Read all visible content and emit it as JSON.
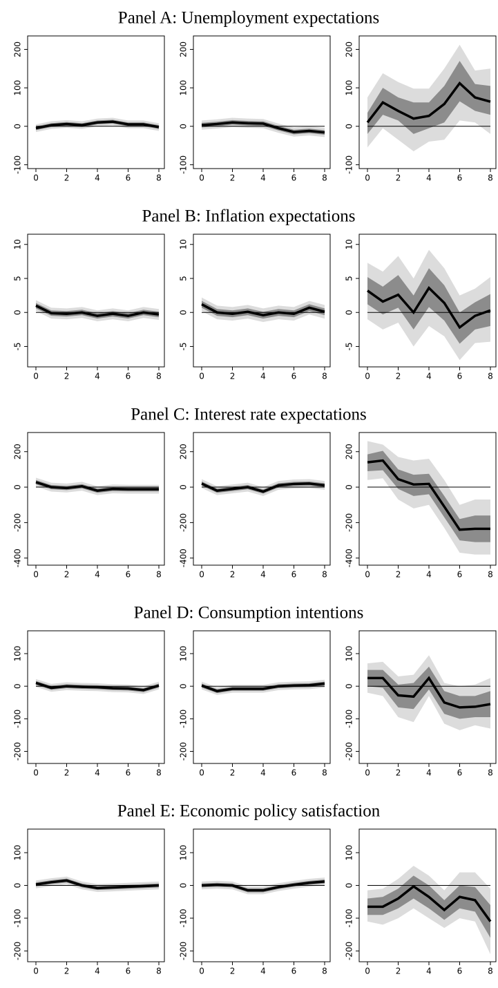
{
  "chart_data": [
    {
      "type": "line",
      "title": "Panel A: Unemployment expectations",
      "x": [
        0,
        1,
        2,
        3,
        4,
        5,
        6,
        7,
        8
      ],
      "xlim": [
        -0.54,
        8.36
      ],
      "xticks": [
        0,
        2,
        4,
        6,
        8
      ],
      "ylim": [
        -110,
        235
      ],
      "yticks": [
        -100,
        0,
        100,
        200
      ],
      "reference_line": 0,
      "line_color": "#000000",
      "inner_band_color": "#8c8c8c",
      "outer_band_color": "#dcdcdc",
      "subplots": [
        {
          "values": [
            -5,
            3,
            6,
            3,
            10,
            12,
            5,
            5,
            -2
          ],
          "inner_lower": [
            -10,
            -2,
            1,
            -2,
            5,
            7,
            0,
            0,
            -7
          ],
          "inner_upper": [
            0,
            8,
            11,
            8,
            15,
            17,
            10,
            10,
            3
          ],
          "outer_lower": [
            -15,
            -7,
            -4,
            -7,
            0,
            2,
            -5,
            -5,
            -12
          ],
          "outer_upper": [
            5,
            13,
            16,
            13,
            20,
            22,
            15,
            15,
            8
          ]
        },
        {
          "values": [
            3,
            6,
            10,
            8,
            7,
            -5,
            -15,
            -12,
            -16
          ],
          "inner_lower": [
            -3,
            0,
            4,
            2,
            1,
            -11,
            -21,
            -18,
            -22
          ],
          "inner_upper": [
            9,
            12,
            16,
            14,
            13,
            1,
            -9,
            -6,
            -10
          ],
          "outer_lower": [
            -9,
            -6,
            -2,
            -4,
            -5,
            -17,
            -27,
            -24,
            -28
          ],
          "outer_upper": [
            15,
            18,
            22,
            20,
            19,
            7,
            -3,
            0,
            -4
          ]
        },
        {
          "values": [
            10,
            62,
            40,
            20,
            27,
            58,
            112,
            75,
            64
          ],
          "inner_lower": [
            -20,
            30,
            15,
            -20,
            -5,
            10,
            65,
            40,
            30
          ],
          "inner_upper": [
            35,
            100,
            75,
            62,
            62,
            105,
            170,
            110,
            105
          ],
          "outer_lower": [
            -55,
            -5,
            -35,
            -65,
            -40,
            -35,
            15,
            10,
            -20
          ],
          "outer_upper": [
            75,
            138,
            115,
            98,
            98,
            150,
            212,
            145,
            150
          ]
        }
      ]
    },
    {
      "type": "line",
      "title": "Panel B: Inflation expectations",
      "x": [
        0,
        1,
        2,
        3,
        4,
        5,
        6,
        7,
        8
      ],
      "xlim": [
        -0.54,
        8.36
      ],
      "xticks": [
        0,
        2,
        4,
        6,
        8
      ],
      "ylim": [
        -8,
        11.5
      ],
      "yticks": [
        -5,
        0,
        5,
        10
      ],
      "reference_line": 0,
      "line_color": "#000000",
      "inner_band_color": "#8c8c8c",
      "outer_band_color": "#dcdcdc",
      "subplots": [
        {
          "values": [
            1,
            -0.1,
            -0.2,
            0,
            -0.5,
            -0.2,
            -0.5,
            0,
            -0.3
          ],
          "inner_lower": [
            0.6,
            -0.5,
            -0.6,
            -0.4,
            -0.9,
            -0.6,
            -0.9,
            -0.4,
            -0.7
          ],
          "inner_upper": [
            1.4,
            0.3,
            0.2,
            0.4,
            -0.1,
            0.2,
            -0.1,
            0.4,
            0.1
          ],
          "outer_lower": [
            0.2,
            -0.9,
            -1,
            -0.8,
            -1.3,
            -1,
            -1.3,
            -0.8,
            -1.1
          ],
          "outer_upper": [
            1.8,
            0.7,
            0.6,
            0.8,
            0.3,
            0.6,
            0.3,
            0.8,
            0.5
          ]
        },
        {
          "values": [
            1.2,
            0,
            -0.2,
            0.1,
            -0.4,
            0,
            -0.2,
            0.7,
            0.1
          ],
          "inner_lower": [
            0.7,
            -0.5,
            -0.7,
            -0.4,
            -0.9,
            -0.5,
            -0.7,
            0.2,
            -0.4
          ],
          "inner_upper": [
            1.7,
            0.5,
            0.3,
            0.6,
            0.1,
            0.5,
            0.3,
            1.2,
            0.6
          ],
          "outer_lower": [
            0.2,
            -1,
            -1.2,
            -0.9,
            -1.4,
            -1,
            -1.2,
            -0.3,
            -0.9
          ],
          "outer_upper": [
            2.2,
            1,
            0.8,
            1.1,
            0.6,
            1,
            0.8,
            1.7,
            1.1
          ]
        },
        {
          "values": [
            3.2,
            1.6,
            2.6,
            0,
            3.6,
            1.4,
            -2.2,
            -0.5,
            0.3
          ],
          "inner_lower": [
            1.2,
            -0.3,
            0.7,
            -2.5,
            0.8,
            -1.2,
            -4.6,
            -2.5,
            -2
          ],
          "inner_upper": [
            5.2,
            3.8,
            5.5,
            2.5,
            6.5,
            4,
            0,
            1.5,
            2.7
          ],
          "outer_lower": [
            -1,
            -2.5,
            -1.5,
            -5,
            -2,
            -3.5,
            -7,
            -4.5,
            -4.3
          ],
          "outer_upper": [
            7.3,
            6,
            8.3,
            5,
            9.2,
            6.5,
            2.5,
            3.5,
            5.2
          ]
        }
      ]
    },
    {
      "type": "line",
      "title": "Panel C: Interest rate expectations",
      "x": [
        0,
        1,
        2,
        3,
        4,
        5,
        6,
        7,
        8
      ],
      "xlim": [
        -0.54,
        8.36
      ],
      "xticks": [
        0,
        2,
        4,
        6,
        8
      ],
      "ylim": [
        -440,
        308
      ],
      "yticks": [
        -400,
        -200,
        0,
        200
      ],
      "reference_line": 0,
      "line_color": "#000000",
      "inner_band_color": "#8c8c8c",
      "outer_band_color": "#dcdcdc",
      "subplots": [
        {
          "values": [
            28,
            0,
            -5,
            5,
            -20,
            -10,
            -12,
            -12,
            -12
          ],
          "inner_lower": [
            16,
            -12,
            -17,
            -7,
            -32,
            -22,
            -24,
            -24,
            -24
          ],
          "inner_upper": [
            40,
            12,
            7,
            17,
            -8,
            2,
            0,
            0,
            0
          ],
          "outer_lower": [
            3,
            -25,
            -30,
            -20,
            -45,
            -35,
            -37,
            -37,
            -37
          ],
          "outer_upper": [
            53,
            25,
            20,
            30,
            5,
            15,
            13,
            13,
            13
          ]
        },
        {
          "values": [
            20,
            -20,
            -10,
            0,
            -25,
            10,
            18,
            20,
            10
          ],
          "inner_lower": [
            8,
            -32,
            -22,
            -12,
            -37,
            -2,
            6,
            8,
            -2
          ],
          "inner_upper": [
            32,
            -8,
            2,
            12,
            -13,
            22,
            30,
            32,
            22
          ],
          "outer_lower": [
            -5,
            -45,
            -35,
            -25,
            -50,
            -15,
            -7,
            -5,
            -15
          ],
          "outer_upper": [
            45,
            5,
            15,
            25,
            0,
            35,
            43,
            45,
            35
          ]
        },
        {
          "values": [
            140,
            150,
            45,
            15,
            18,
            -110,
            -240,
            -235,
            -235
          ],
          "inner_lower": [
            90,
            95,
            -10,
            -50,
            -40,
            -170,
            -300,
            -310,
            -310
          ],
          "inner_upper": [
            185,
            205,
            100,
            70,
            75,
            -50,
            -180,
            -160,
            -160
          ],
          "outer_lower": [
            40,
            50,
            -70,
            -120,
            -100,
            -230,
            -370,
            -380,
            -380
          ],
          "outer_upper": [
            260,
            240,
            170,
            150,
            160,
            40,
            -100,
            -70,
            -70
          ]
        }
      ]
    },
    {
      "type": "line",
      "title": "Panel D: Consumption intentions",
      "x": [
        0,
        1,
        2,
        3,
        4,
        5,
        6,
        7,
        8
      ],
      "xlim": [
        -0.54,
        8.36
      ],
      "xticks": [
        0,
        2,
        4,
        6,
        8
      ],
      "ylim": [
        -237,
        170
      ],
      "yticks": [
        -200,
        -100,
        0,
        100
      ],
      "reference_line": 0,
      "line_color": "#000000",
      "inner_band_color": "#8c8c8c",
      "outer_band_color": "#dcdcdc",
      "subplots": [
        {
          "values": [
            10,
            -5,
            0,
            -2,
            -3,
            -6,
            -7,
            -12,
            2
          ],
          "inner_lower": [
            4,
            -11,
            -6,
            -8,
            -9,
            -12,
            -13,
            -18,
            -4
          ],
          "inner_upper": [
            16,
            1,
            6,
            4,
            3,
            0,
            -1,
            -6,
            8
          ],
          "outer_lower": [
            -2,
            -17,
            -12,
            -14,
            -15,
            -18,
            -19,
            -24,
            -10
          ],
          "outer_upper": [
            22,
            7,
            12,
            10,
            9,
            6,
            5,
            0,
            14
          ]
        },
        {
          "values": [
            2,
            -15,
            -8,
            -8,
            -8,
            0,
            2,
            3,
            8
          ],
          "inner_lower": [
            -4,
            -21,
            -14,
            -14,
            -14,
            -6,
            -4,
            -3,
            2
          ],
          "inner_upper": [
            8,
            -9,
            -2,
            -2,
            -2,
            6,
            8,
            9,
            14
          ],
          "outer_lower": [
            -10,
            -27,
            -20,
            -20,
            -20,
            -12,
            -10,
            -9,
            -4
          ],
          "outer_upper": [
            14,
            -3,
            4,
            4,
            4,
            12,
            14,
            15,
            20
          ]
        },
        {
          "values": [
            25,
            25,
            -28,
            -32,
            25,
            -50,
            -65,
            -63,
            -55
          ],
          "inner_lower": [
            0,
            -5,
            -65,
            -70,
            -10,
            -85,
            -100,
            -95,
            -95
          ],
          "inner_upper": [
            50,
            50,
            5,
            10,
            60,
            -15,
            -30,
            -30,
            -15
          ],
          "outer_lower": [
            -20,
            -30,
            -95,
            -110,
            -30,
            -115,
            -135,
            -120,
            -130
          ],
          "outer_upper": [
            70,
            75,
            30,
            35,
            95,
            10,
            0,
            5,
            25
          ]
        }
      ]
    },
    {
      "type": "line",
      "title": "Panel E: Economic policy satisfaction",
      "x": [
        0,
        1,
        2,
        3,
        4,
        5,
        6,
        7,
        8
      ],
      "xlim": [
        -0.54,
        8.36
      ],
      "xticks": [
        0,
        2,
        4,
        6,
        8
      ],
      "ylim": [
        -233,
        172
      ],
      "yticks": [
        -200,
        -100,
        0,
        100
      ],
      "reference_line": 0,
      "line_color": "#000000",
      "inner_band_color": "#8c8c8c",
      "outer_band_color": "#dcdcdc",
      "subplots": [
        {
          "values": [
            3,
            10,
            15,
            0,
            -8,
            -6,
            -4,
            -2,
            0
          ],
          "inner_lower": [
            -3,
            4,
            9,
            -6,
            -14,
            -12,
            -10,
            -8,
            -6
          ],
          "inner_upper": [
            9,
            16,
            21,
            6,
            -2,
            0,
            2,
            4,
            6
          ],
          "outer_lower": [
            -9,
            -2,
            3,
            -12,
            -20,
            -18,
            -16,
            -14,
            -12
          ],
          "outer_upper": [
            15,
            22,
            27,
            12,
            4,
            6,
            8,
            10,
            12
          ]
        },
        {
          "values": [
            0,
            2,
            0,
            -15,
            -15,
            -5,
            2,
            8,
            12
          ],
          "inner_lower": [
            -6,
            -4,
            -6,
            -21,
            -21,
            -11,
            -4,
            2,
            6
          ],
          "inner_upper": [
            6,
            8,
            6,
            -9,
            -9,
            1,
            8,
            14,
            18
          ],
          "outer_lower": [
            -12,
            -10,
            -12,
            -27,
            -27,
            -17,
            -10,
            -4,
            0
          ],
          "outer_upper": [
            12,
            14,
            12,
            -3,
            -3,
            7,
            14,
            20,
            24
          ]
        },
        {
          "values": [
            -65,
            -65,
            -40,
            -3,
            -35,
            -75,
            -35,
            -45,
            -110
          ],
          "inner_lower": [
            -90,
            -90,
            -70,
            -40,
            -70,
            -105,
            -70,
            -80,
            -160
          ],
          "inner_upper": [
            -40,
            -35,
            -10,
            30,
            0,
            -45,
            0,
            -5,
            -60
          ],
          "outer_lower": [
            -110,
            -120,
            -100,
            -70,
            -100,
            -130,
            -100,
            -110,
            -210
          ],
          "outer_upper": [
            -15,
            -10,
            20,
            60,
            30,
            -15,
            40,
            40,
            -10
          ]
        }
      ]
    }
  ]
}
